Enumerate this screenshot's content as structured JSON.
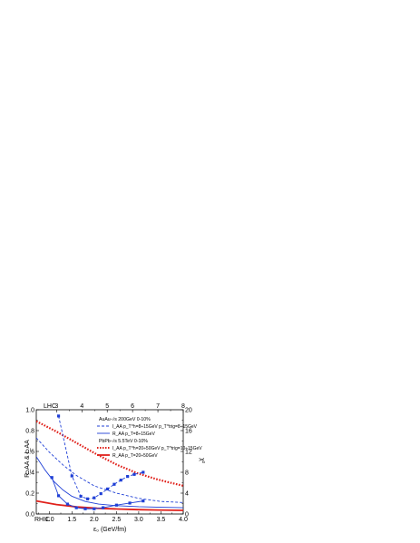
{
  "chart_data": {
    "type": "line",
    "title": "",
    "xlabel": "ε₀ (GeV/fm)",
    "ylabel_left": "R_AA & I_AA",
    "ylabel_right": "χ²",
    "top_axis_label": "LHC",
    "bottom_axis_label": "RHIC",
    "xlim": [
      0.7,
      4.0
    ],
    "ylim_left": [
      0.0,
      1.0
    ],
    "xlim_top": [
      2.2,
      8.0
    ],
    "ylim_right": [
      0,
      20
    ],
    "x_ticks": [
      "1.0",
      "1.5",
      "2.0",
      "2.5",
      "3.0",
      "3.5",
      "4.0"
    ],
    "y_ticks_left": [
      "0.0",
      "0.2",
      "0.4",
      "0.6",
      "0.8",
      "1.0"
    ],
    "top_ticks": [
      "3",
      "4",
      "5",
      "6",
      "7",
      "8"
    ],
    "right_ticks": [
      "0",
      "4",
      "8",
      "12",
      "16",
      "20"
    ],
    "grid": false,
    "legend_position": "top-right",
    "legend": {
      "rhic_header": "AuAu-√s 200GeV  0-10%",
      "rhic_iaa": "I_AA  p_T^h=8÷15GeV p_T^trig=8÷15GeV",
      "rhic_raa": "R_AA  p_T=8÷15GeV",
      "lhc_header": "PbPb-√s 5.5TeV  0-10%",
      "lhc_iaa": "I_AA  p_T^h=20÷50GeV p_T^trig=10÷15GeV",
      "lhc_raa": "R_AA  p_T=20÷50GeV"
    },
    "series": [
      {
        "id": "rhic_iaa",
        "axis": "bottom-left",
        "color": "#1f3fd6",
        "dash": "dashed",
        "x": [
          0.7,
          1.0,
          1.3,
          1.6,
          2.0,
          2.5,
          3.0,
          3.5,
          4.0
        ],
        "y": [
          0.73,
          0.59,
          0.47,
          0.37,
          0.27,
          0.2,
          0.15,
          0.12,
          0.11
        ]
      },
      {
        "id": "rhic_raa",
        "axis": "bottom-left",
        "color": "#1f3fd6",
        "dash": "solid",
        "x": [
          0.7,
          0.9,
          1.1,
          1.3,
          1.5,
          1.8,
          2.1,
          2.5,
          3.0,
          3.5,
          4.0
        ],
        "y": [
          0.55,
          0.42,
          0.31,
          0.23,
          0.17,
          0.12,
          0.095,
          0.08,
          0.07,
          0.065,
          0.06
        ]
      },
      {
        "id": "lhc_iaa",
        "axis": "top-left",
        "color": "#e0201a",
        "dash": "dotted",
        "x": [
          2.2,
          3.0,
          3.8,
          4.6,
          5.4,
          6.2,
          7.0,
          8.0
        ],
        "y": [
          0.89,
          0.79,
          0.68,
          0.57,
          0.47,
          0.39,
          0.33,
          0.27
        ]
      },
      {
        "id": "lhc_raa",
        "axis": "top-left",
        "color": "#e0201a",
        "dash": "solid",
        "x": [
          2.2,
          3.0,
          3.8,
          4.6,
          5.4,
          6.2,
          7.0,
          8.0
        ],
        "y": [
          0.125,
          0.09,
          0.068,
          0.055,
          0.048,
          0.042,
          0.038,
          0.035
        ]
      },
      {
        "id": "chi2_iaa_rhic",
        "axis": "bottom-right",
        "color": "#1f3fd6",
        "dash": "dashed",
        "markers": true,
        "x": [
          1.2,
          1.5,
          1.7,
          1.85,
          2.0,
          2.15,
          2.3,
          2.45,
          2.6,
          2.75,
          2.9,
          3.1
        ],
        "y": [
          18.8,
          7.3,
          3.4,
          2.9,
          3.1,
          3.9,
          4.8,
          5.7,
          6.5,
          7.2,
          7.6,
          8.0
        ]
      },
      {
        "id": "chi2_raa_rhic",
        "axis": "bottom-right",
        "color": "#1f3fd6",
        "dash": "solid",
        "markers": true,
        "x": [
          1.05,
          1.2,
          1.4,
          1.6,
          1.8,
          2.0,
          2.2,
          2.5,
          2.8,
          3.1
        ],
        "y": [
          7.0,
          3.5,
          1.9,
          1.2,
          1.0,
          1.0,
          1.2,
          1.7,
          2.1,
          2.5
        ]
      }
    ]
  }
}
